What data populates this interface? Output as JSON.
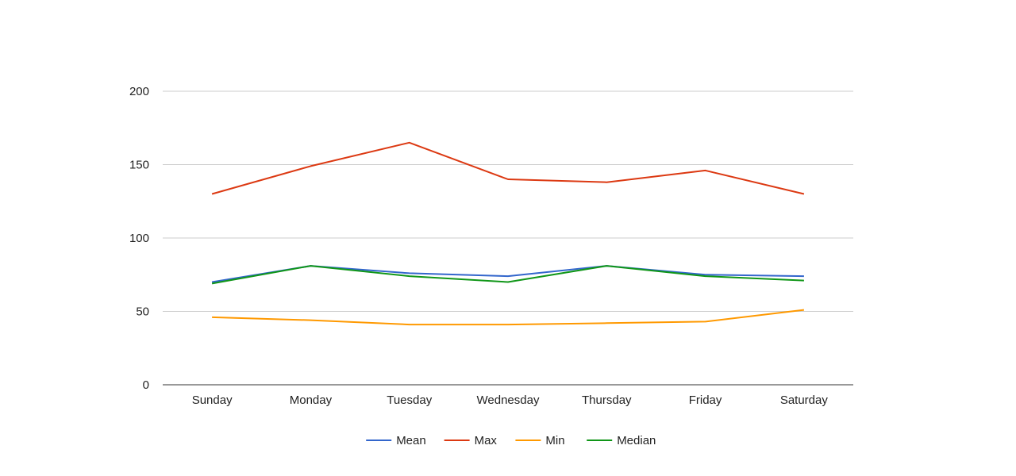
{
  "chart_data": {
    "type": "line",
    "title": "",
    "xlabel": "",
    "ylabel": "",
    "categories": [
      "Sunday",
      "Monday",
      "Tuesday",
      "Wednesday",
      "Thursday",
      "Friday",
      "Saturday"
    ],
    "ylim": [
      0,
      200
    ],
    "yticks": [
      "0",
      "50",
      "100",
      "150",
      "200"
    ],
    "grid": true,
    "legend_position": "bottom",
    "series": [
      {
        "name": "Mean",
        "color": "#3366cc",
        "values": [
          70,
          81,
          76,
          74,
          81,
          75,
          74
        ]
      },
      {
        "name": "Max",
        "color": "#dc3912",
        "values": [
          130,
          149,
          165,
          140,
          138,
          146,
          130
        ]
      },
      {
        "name": "Min",
        "color": "#ff9900",
        "values": [
          46,
          44,
          41,
          41,
          42,
          43,
          51
        ]
      },
      {
        "name": "Median",
        "color": "#109618",
        "values": [
          69,
          81,
          74,
          70,
          81,
          74,
          71
        ]
      }
    ]
  }
}
